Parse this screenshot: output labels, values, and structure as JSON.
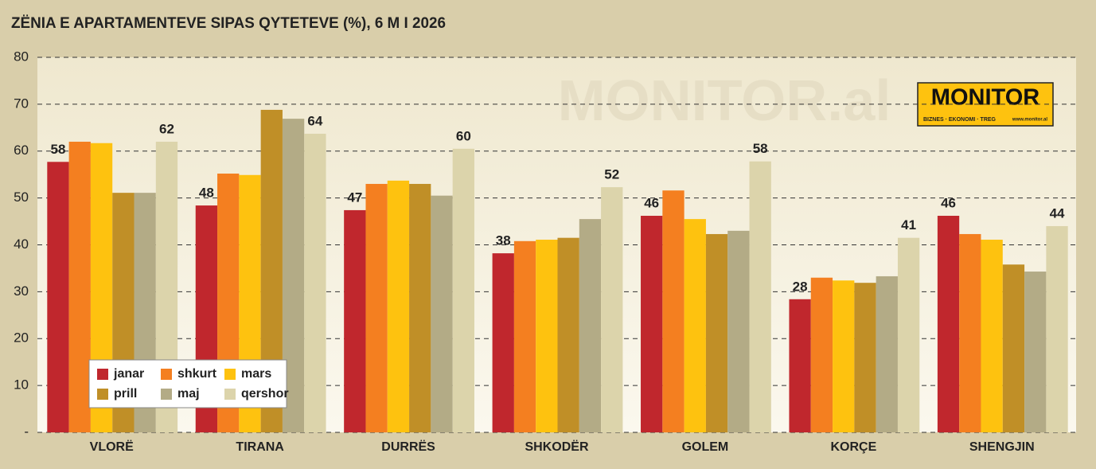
{
  "chart_data": {
    "type": "bar",
    "title": "ZËNIA E APARTAMENTEVE SIPAS QYTETEVE (%), 6 M I 2026",
    "watermark": "MONITOR.al",
    "logo": {
      "title": "MONITOR",
      "tagline": "BIZNES · EKONOMI · TREG",
      "url": "www.monitor.al"
    },
    "categories": [
      "VLORË",
      "TIRANA",
      "DURRËS",
      "SHKODËR",
      "GOLEM",
      "KORÇE",
      "SHENGJIN"
    ],
    "series": [
      {
        "name": "janar",
        "color": "#c0272d",
        "values": [
          57.7,
          48.4,
          47.4,
          38.2,
          46.2,
          28.4,
          46.2
        ],
        "value_labels": [
          "58",
          "48",
          "47",
          "38",
          "46",
          "28",
          "46"
        ]
      },
      {
        "name": "shkurt",
        "color": "#f47f20",
        "values": [
          62.0,
          55.2,
          53.0,
          40.8,
          51.6,
          33.0,
          42.3
        ]
      },
      {
        "name": "mars",
        "color": "#fec20f",
        "values": [
          61.7,
          54.9,
          53.7,
          41.1,
          45.5,
          32.4,
          41.1
        ]
      },
      {
        "name": "prill",
        "color": "#c08f27",
        "values": [
          51.1,
          68.8,
          53.0,
          41.5,
          42.3,
          31.9,
          35.8
        ]
      },
      {
        "name": "maj",
        "color": "#b3ab86",
        "values": [
          51.1,
          66.9,
          50.5,
          45.5,
          43.0,
          33.3,
          34.3
        ]
      },
      {
        "name": "qershor",
        "color": "#dcd4ab",
        "values": [
          62.0,
          63.7,
          60.5,
          52.3,
          57.8,
          41.5,
          44.0
        ],
        "value_labels": [
          "62",
          "64",
          "60",
          "52",
          "58",
          "41",
          "44"
        ]
      }
    ],
    "ylim": [
      0,
      80
    ],
    "yticks": [
      {
        "value": 0,
        "label": "-"
      },
      10,
      20,
      30,
      40,
      50,
      60,
      70,
      80
    ],
    "grid": true
  }
}
